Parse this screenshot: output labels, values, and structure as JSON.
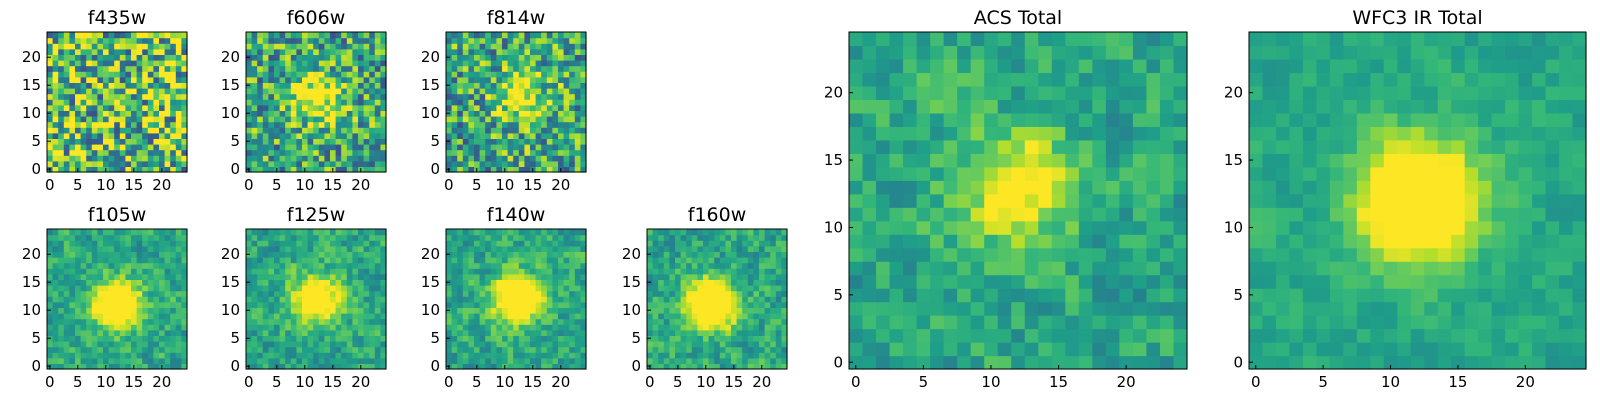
{
  "chart_data": [
    {
      "type": "heatmap",
      "title": "f435w",
      "xticks": [
        "0",
        "5",
        "10",
        "15",
        "20"
      ],
      "yticks": [
        "0",
        "5",
        "10",
        "15",
        "20"
      ],
      "xlim": [
        -0.5,
        24.5
      ],
      "ylim": [
        -0.5,
        24.5
      ],
      "grid": false,
      "colormap": "viridis",
      "source_center": null,
      "source_strength": 0.0,
      "noise_level": 0.9
    },
    {
      "type": "heatmap",
      "title": "f606w",
      "xticks": [
        "0",
        "5",
        "10",
        "15",
        "20"
      ],
      "yticks": [
        "0",
        "5",
        "10",
        "15",
        "20"
      ],
      "xlim": [
        -0.5,
        24.5
      ],
      "ylim": [
        -0.5,
        24.5
      ],
      "grid": false,
      "colormap": "viridis",
      "source_center": [
        12,
        13
      ],
      "source_strength": 0.55,
      "noise_level": 0.7
    },
    {
      "type": "heatmap",
      "title": "f814w",
      "xticks": [
        "0",
        "5",
        "10",
        "15",
        "20"
      ],
      "yticks": [
        "0",
        "5",
        "10",
        "15",
        "20"
      ],
      "xlim": [
        -0.5,
        24.5
      ],
      "ylim": [
        -0.5,
        24.5
      ],
      "grid": false,
      "colormap": "viridis",
      "source_center": [
        13,
        13
      ],
      "source_strength": 0.5,
      "noise_level": 0.7
    },
    {
      "type": "heatmap",
      "title": "f105w",
      "xticks": [
        "0",
        "5",
        "10",
        "15",
        "20"
      ],
      "yticks": [
        "0",
        "5",
        "10",
        "15",
        "20"
      ],
      "xlim": [
        -0.5,
        24.5
      ],
      "ylim": [
        -0.5,
        24.5
      ],
      "grid": false,
      "colormap": "viridis",
      "source_center": [
        12,
        11
      ],
      "source_strength": 0.8,
      "noise_level": 0.5
    },
    {
      "type": "heatmap",
      "title": "f125w",
      "xticks": [
        "0",
        "5",
        "10",
        "15",
        "20"
      ],
      "yticks": [
        "0",
        "5",
        "10",
        "15",
        "20"
      ],
      "xlim": [
        -0.5,
        24.5
      ],
      "ylim": [
        -0.5,
        24.5
      ],
      "grid": false,
      "colormap": "viridis",
      "source_center": [
        12,
        12
      ],
      "source_strength": 0.7,
      "noise_level": 0.5
    },
    {
      "type": "heatmap",
      "title": "f140w",
      "xticks": [
        "0",
        "5",
        "10",
        "15",
        "20"
      ],
      "yticks": [
        "0",
        "5",
        "10",
        "15",
        "20"
      ],
      "xlim": [
        -0.5,
        24.5
      ],
      "ylim": [
        -0.5,
        24.5
      ],
      "grid": false,
      "colormap": "viridis",
      "source_center": [
        12,
        12
      ],
      "source_strength": 0.85,
      "noise_level": 0.5
    },
    {
      "type": "heatmap",
      "title": "f160w",
      "xticks": [
        "0",
        "5",
        "10",
        "15",
        "20"
      ],
      "yticks": [
        "0",
        "5",
        "10",
        "15",
        "20"
      ],
      "xlim": [
        -0.5,
        24.5
      ],
      "ylim": [
        -0.5,
        24.5
      ],
      "grid": false,
      "colormap": "viridis",
      "source_center": [
        11,
        11
      ],
      "source_strength": 0.9,
      "noise_level": 0.5
    },
    {
      "type": "heatmap",
      "title": "ACS Total",
      "xticks": [
        "0",
        "5",
        "10",
        "15",
        "20"
      ],
      "yticks": [
        "0",
        "5",
        "10",
        "15",
        "20"
      ],
      "xlim": [
        -0.5,
        24.5
      ],
      "ylim": [
        -0.5,
        24.5
      ],
      "grid": false,
      "colormap": "viridis",
      "source_center": [
        12,
        13
      ],
      "source_strength": 0.45,
      "noise_level": 0.45
    },
    {
      "type": "heatmap",
      "title": "WFC3 IR Total",
      "xticks": [
        "0",
        "5",
        "10",
        "15",
        "20"
      ],
      "yticks": [
        "0",
        "5",
        "10",
        "15",
        "20"
      ],
      "xlim": [
        -0.5,
        24.5
      ],
      "ylim": [
        -0.5,
        24.5
      ],
      "grid": false,
      "colormap": "viridis",
      "source_center": [
        12,
        12
      ],
      "source_strength": 0.9,
      "noise_level": 0.25
    }
  ]
}
